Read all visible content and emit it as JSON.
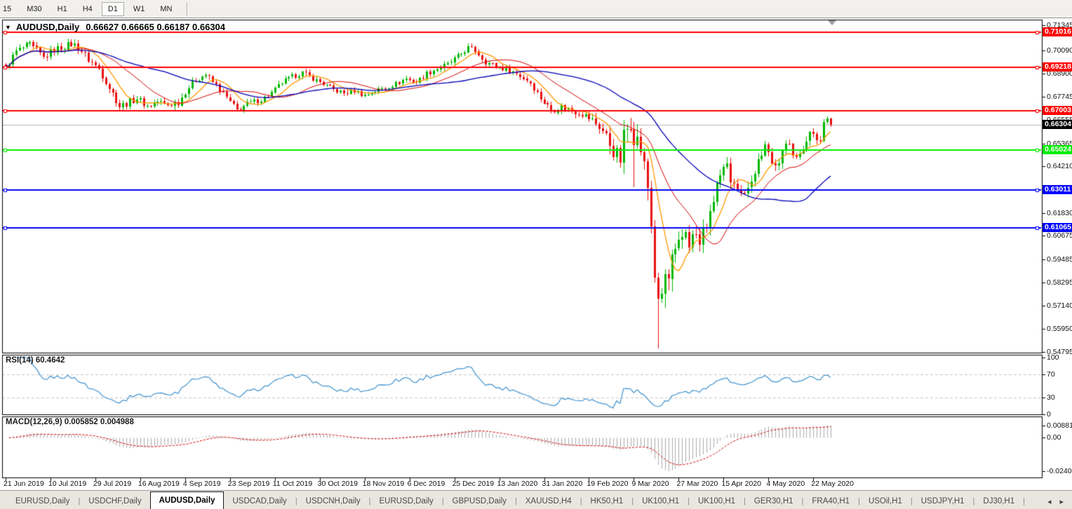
{
  "toolbar": {
    "timeframes": [
      {
        "label": "15",
        "active": false
      },
      {
        "label": "M30",
        "active": false
      },
      {
        "label": "H1",
        "active": false
      },
      {
        "label": "H4",
        "active": false
      },
      {
        "label": "D1",
        "active": true
      },
      {
        "label": "W1",
        "active": false
      },
      {
        "label": "MN",
        "active": false
      }
    ]
  },
  "chart_header": {
    "symbol": "AUDUSD,Daily",
    "ohlc": "0.66627 0.66665 0.66187 0.66304"
  },
  "tabs": {
    "items": [
      "EURUSD,Daily",
      "USDCHF,Daily",
      "AUDUSD,Daily",
      "USDCAD,Daily",
      "USDCNH,Daily",
      "EURUSD,Daily",
      "GBPUSD,Daily",
      "XAUUSD,H4",
      "HK50,H1",
      "UK100,H1",
      "UK100,H1",
      "GER30,H1",
      "FRA40,H1",
      "USOil,H1",
      "USDJPY,H1",
      "DJ30,H1"
    ],
    "active_index": 2
  },
  "chart_data": {
    "type": "candlestick",
    "symbol": "AUDUSD",
    "timeframe": "Daily",
    "open": "0.66627",
    "high": "0.66665",
    "low": "0.66187",
    "close": "0.66304",
    "y_ticks": [
      "0.71345",
      "0.70090",
      "0.68900",
      "0.67745",
      "0.66555",
      "0.65365",
      "0.64210",
      "0.61830",
      "0.60675",
      "0.59485",
      "0.58295",
      "0.57140",
      "0.55950",
      "0.54795"
    ],
    "x_labels": [
      "21 Jun 2019",
      "10 Jul 2019",
      "29 Jul 2019",
      "16 Aug 2019",
      "4 Sep 2019",
      "23 Sep 2019",
      "11 Oct 2019",
      "30 Oct 2019",
      "18 Nov 2019",
      "6 Dec 2019",
      "25 Dec 2019",
      "13 Jan 2020",
      "31 Jan 2020",
      "19 Feb 2020",
      "9 Mar 2020",
      "27 Mar 2020",
      "15 Apr 2020",
      "4 May 2020",
      "22 May 2020"
    ],
    "price_top": 0.71645,
    "price_bottom": 0.5475,
    "horizontal_lines": [
      {
        "price": 0.71016,
        "label": "0.71016",
        "color": "#FF0000"
      },
      {
        "price": 0.69218,
        "label": "0.69218",
        "color": "#FF0000"
      },
      {
        "price": 0.67003,
        "label": "0.67003",
        "color": "#FF0000"
      },
      {
        "price": 0.65024,
        "label": "0.65024",
        "color": "#00EE00"
      },
      {
        "price": 0.63011,
        "label": "0.63011",
        "color": "#0000FF"
      },
      {
        "price": 0.61065,
        "label": "0.61065",
        "color": "#0000FF"
      }
    ],
    "current_price": {
      "price": 0.66304,
      "label": "0.66304",
      "line_color": "#B8B8B8",
      "label_bg": "#000000"
    },
    "candles": {
      "count": 240,
      "bull_color": "#00B800",
      "bear_color": "#E81010",
      "close_waypoints": [
        [
          0,
          0.6919
        ],
        [
          3,
          0.7005
        ],
        [
          7,
          0.7038
        ],
        [
          11,
          0.6972
        ],
        [
          14,
          0.7012
        ],
        [
          19,
          0.7042
        ],
        [
          21,
          0.7026
        ],
        [
          24,
          0.6962
        ],
        [
          27,
          0.6916
        ],
        [
          30,
          0.682
        ],
        [
          33,
          0.6726
        ],
        [
          35,
          0.674
        ],
        [
          38,
          0.6765
        ],
        [
          41,
          0.6724
        ],
        [
          44,
          0.6749
        ],
        [
          47,
          0.6731
        ],
        [
          50,
          0.6744
        ],
        [
          52,
          0.68
        ],
        [
          55,
          0.6862
        ],
        [
          58,
          0.6884
        ],
        [
          61,
          0.6831
        ],
        [
          64,
          0.6767
        ],
        [
          67,
          0.6705
        ],
        [
          70,
          0.6738
        ],
        [
          74,
          0.6757
        ],
        [
          77,
          0.6792
        ],
        [
          80,
          0.6845
        ],
        [
          83,
          0.6873
        ],
        [
          86,
          0.6894
        ],
        [
          89,
          0.6866
        ],
        [
          92,
          0.6838
        ],
        [
          95,
          0.6809
        ],
        [
          98,
          0.6791
        ],
        [
          101,
          0.6803
        ],
        [
          104,
          0.678
        ],
        [
          107,
          0.6802
        ],
        [
          110,
          0.682
        ],
        [
          113,
          0.6838
        ],
        [
          116,
          0.6866
        ],
        [
          119,
          0.6846
        ],
        [
          122,
          0.6891
        ],
        [
          125,
          0.6915
        ],
        [
          128,
          0.6937
        ],
        [
          131,
          0.6978
        ],
        [
          134,
          0.7022
        ],
        [
          136,
          0.7008
        ],
        [
          139,
          0.6951
        ],
        [
          142,
          0.6926
        ],
        [
          146,
          0.6908
        ],
        [
          149,
          0.688
        ],
        [
          152,
          0.6845
        ],
        [
          155,
          0.6767
        ],
        [
          158,
          0.6703
        ],
        [
          161,
          0.6724
        ],
        [
          164,
          0.6703
        ],
        [
          167,
          0.6689
        ],
        [
          170,
          0.6653
        ],
        [
          172,
          0.6625
        ],
        [
          174,
          0.6571
        ],
        [
          176,
          0.65
        ],
        [
          178,
          0.6455
        ],
        [
          179,
          0.6571
        ],
        [
          181,
          0.6653
        ],
        [
          182,
          0.6583
        ],
        [
          184,
          0.6511
        ],
        [
          186,
          0.6312
        ],
        [
          187,
          0.6127
        ],
        [
          188,
          0.5878
        ],
        [
          189,
          0.57
        ],
        [
          190,
          0.5771
        ],
        [
          191,
          0.586
        ],
        [
          192,
          0.5842
        ],
        [
          193,
          0.5942
        ],
        [
          194,
          0.5956
        ],
        [
          196,
          0.6056
        ],
        [
          197,
          0.6098
        ],
        [
          198,
          0.6038
        ],
        [
          200,
          0.6074
        ],
        [
          201,
          0.6013
        ],
        [
          202,
          0.6091
        ],
        [
          204,
          0.6162
        ],
        [
          205,
          0.6251
        ],
        [
          206,
          0.6333
        ],
        [
          209,
          0.6418
        ],
        [
          210,
          0.6322
        ],
        [
          211,
          0.6347
        ],
        [
          213,
          0.6304
        ],
        [
          214,
          0.6269
        ],
        [
          215,
          0.6333
        ],
        [
          217,
          0.6383
        ],
        [
          218,
          0.6454
        ],
        [
          220,
          0.6518
        ],
        [
          221,
          0.6475
        ],
        [
          222,
          0.6429
        ],
        [
          224,
          0.6454
        ],
        [
          225,
          0.65
        ],
        [
          227,
          0.6536
        ],
        [
          228,
          0.6489
        ],
        [
          230,
          0.6475
        ],
        [
          231,
          0.6489
        ],
        [
          232,
          0.6554
        ],
        [
          233,
          0.6596
        ],
        [
          235,
          0.6571
        ],
        [
          236,
          0.6554
        ],
        [
          237,
          0.6653
        ],
        [
          238,
          0.66627
        ],
        [
          239,
          0.66304
        ]
      ],
      "volatility_waypoints": [
        [
          0,
          0.0036
        ],
        [
          25,
          0.0042
        ],
        [
          40,
          0.0038
        ],
        [
          70,
          0.003
        ],
        [
          100,
          0.0028
        ],
        [
          130,
          0.003
        ],
        [
          150,
          0.0032
        ],
        [
          168,
          0.0042
        ],
        [
          175,
          0.0085
        ],
        [
          183,
          0.013
        ],
        [
          190,
          0.014
        ],
        [
          196,
          0.011
        ],
        [
          203,
          0.008
        ],
        [
          212,
          0.0062
        ],
        [
          222,
          0.005
        ],
        [
          239,
          0.0042
        ]
      ],
      "special_lows": {
        "182": 0.6313,
        "189": 0.5495
      },
      "last_candle": {
        "open": 0.66627,
        "high": 0.66665,
        "low": 0.66187,
        "close": 0.66304
      }
    },
    "moving_averages": [
      {
        "period": 8,
        "color": "#FF9900",
        "width": 1.3
      },
      {
        "period": 20,
        "color": "#D40000",
        "width": 1.0
      },
      {
        "period": 45,
        "color": "#0000B4",
        "width": 1.3
      }
    ],
    "indicators": {
      "rsi": {
        "label": "RSI(14) 60.4642",
        "period": 14,
        "value": 60.4642,
        "levels": [
          "100",
          "70",
          "30",
          "0"
        ],
        "level_lines": [
          70,
          30
        ],
        "line_color": "#3F92CF"
      },
      "macd": {
        "label": "MACD(12,26,9) 0.005852 0.004988",
        "fast": 12,
        "slow": 26,
        "signal": 9,
        "value": 0.005852,
        "signal_value": 0.004988,
        "scale_labels": [
          "0.008815",
          "0.00",
          "-0.02408"
        ],
        "scale_max": 0.008815,
        "scale_min": -0.02408,
        "histogram_color": "#ABABAB",
        "signal_color": "#D40000"
      }
    }
  }
}
